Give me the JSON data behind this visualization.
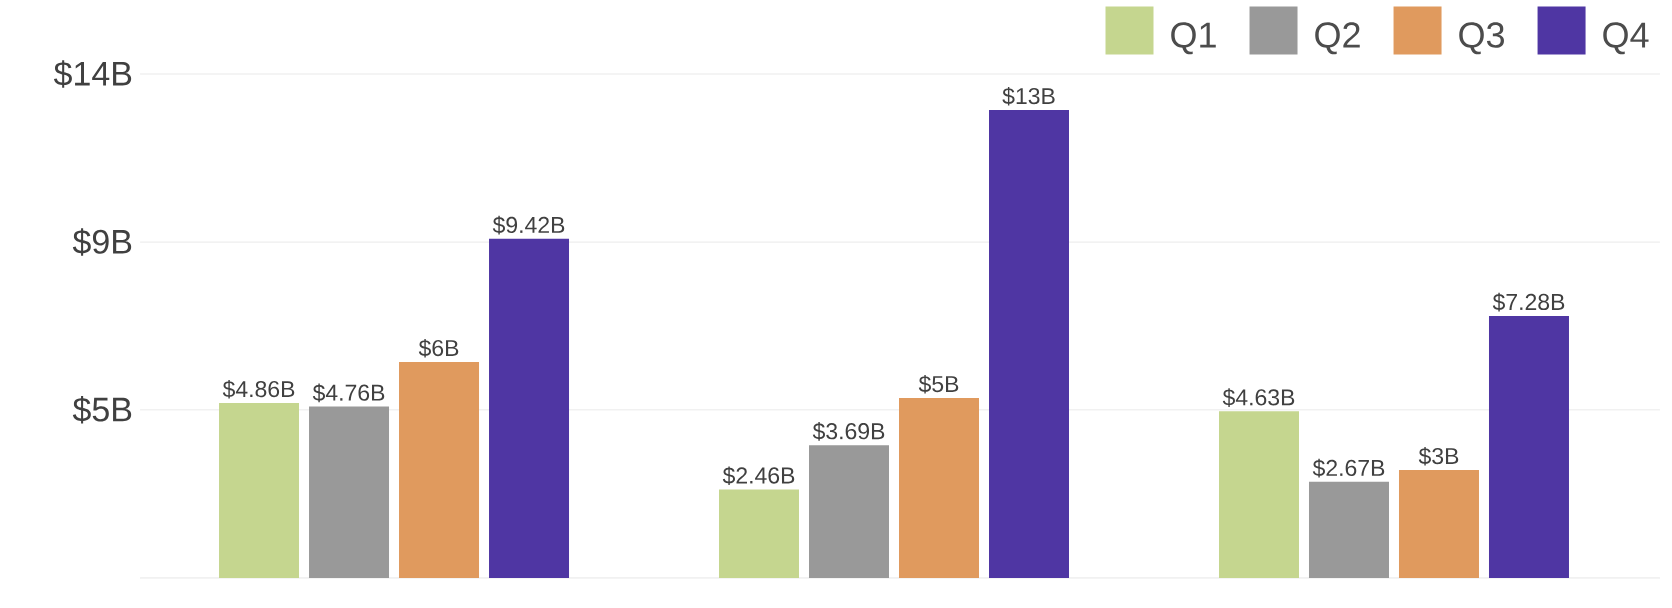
{
  "chart_data": {
    "type": "bar",
    "categories": [
      null,
      null,
      null
    ],
    "series": [
      {
        "name": "Q1",
        "color": "#c5d68f",
        "values": [
          4.86,
          2.46,
          4.63
        ],
        "value_labels": [
          "$4.86B",
          "$2.46B",
          "$4.63B"
        ]
      },
      {
        "name": "Q2",
        "color": "#999999",
        "values": [
          4.76,
          3.69,
          2.67
        ],
        "value_labels": [
          "$4.76B",
          "$3.69B",
          "$2.67B"
        ]
      },
      {
        "name": "Q3",
        "color": "#e09a5e",
        "values": [
          6,
          5,
          3
        ],
        "value_labels": [
          "$6B",
          "$5B",
          "$3B"
        ]
      },
      {
        "name": "Q4",
        "color": "#4f36a3",
        "values": [
          9.42,
          13,
          7.28
        ],
        "value_labels": [
          "$9.42B",
          "$13B",
          "$7.28B"
        ]
      }
    ],
    "ylim": [
      0,
      14
    ],
    "yticks": [
      {
        "value": 4.67,
        "label": "$5B"
      },
      {
        "value": 9.33,
        "label": "$9B"
      },
      {
        "value": 14,
        "label": "$14B"
      }
    ],
    "grid": "y",
    "legend": "top right"
  }
}
